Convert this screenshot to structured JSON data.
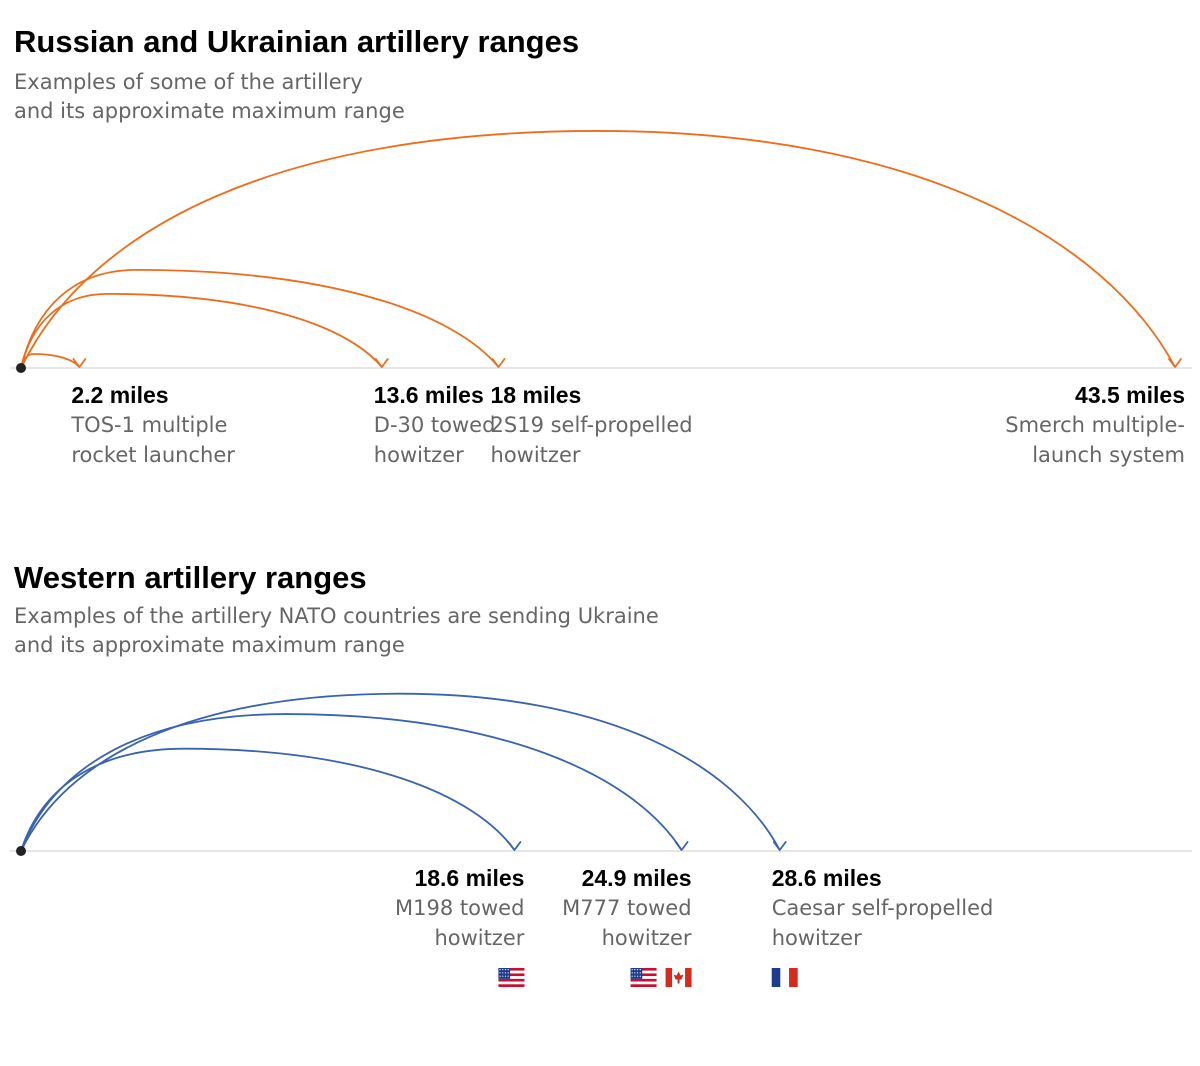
{
  "colors": {
    "russian_ukrainian": "#ef6c1a",
    "western": "#3a63b0",
    "baseline": "#dddddd",
    "origin": "#222222",
    "label": "#000000",
    "sublabel": "#666666"
  },
  "chart_data": [
    {
      "type": "arc",
      "title": "Russian and Ukrainian artillery ranges",
      "subtitle_lines": [
        "Examples of some of the artillery",
        "and its approximate maximum range"
      ],
      "unit": "miles",
      "x_range": [
        0,
        45
      ],
      "color": "#ef6c1a",
      "items": [
        {
          "value": 2.2,
          "value_label": "2.2 miles",
          "name_lines": [
            "TOS-1 multiple",
            "rocket launcher"
          ],
          "align": "left",
          "flags": []
        },
        {
          "value": 13.6,
          "value_label": "13.6 miles",
          "name_lines": [
            "D-30 towed",
            "howitzer"
          ],
          "align": "left",
          "flags": []
        },
        {
          "value": 18,
          "value_label": "18 miles",
          "name_lines": [
            "2S19 self-propelled",
            "howitzer"
          ],
          "align": "left",
          "flags": []
        },
        {
          "value": 43.5,
          "value_label": "43.5 miles",
          "name_lines": [
            "Smerch multiple-",
            "launch system"
          ],
          "align": "right",
          "flags": []
        }
      ]
    },
    {
      "type": "arc",
      "title": "Western artillery ranges",
      "subtitle_lines": [
        "Examples of the artillery NATO countries are sending Ukraine",
        "and its approximate maximum range"
      ],
      "unit": "miles",
      "x_range": [
        0,
        45
      ],
      "color": "#3a63b0",
      "items": [
        {
          "value": 18.6,
          "value_label": "18.6 miles",
          "name_lines": [
            "M198 towed",
            "howitzer"
          ],
          "align": "right",
          "flags": [
            "us-flag-icon"
          ]
        },
        {
          "value": 24.9,
          "value_label": "24.9 miles",
          "name_lines": [
            "M777 towed",
            "howitzer"
          ],
          "align": "right",
          "flags": [
            "us-flag-icon",
            "canada-flag-icon"
          ]
        },
        {
          "value": 28.6,
          "value_label": "28.6 miles",
          "name_lines": [
            "Caesar self-propelled",
            "howitzer"
          ],
          "align": "left",
          "flags": [
            "france-flag-icon"
          ]
        }
      ]
    }
  ]
}
